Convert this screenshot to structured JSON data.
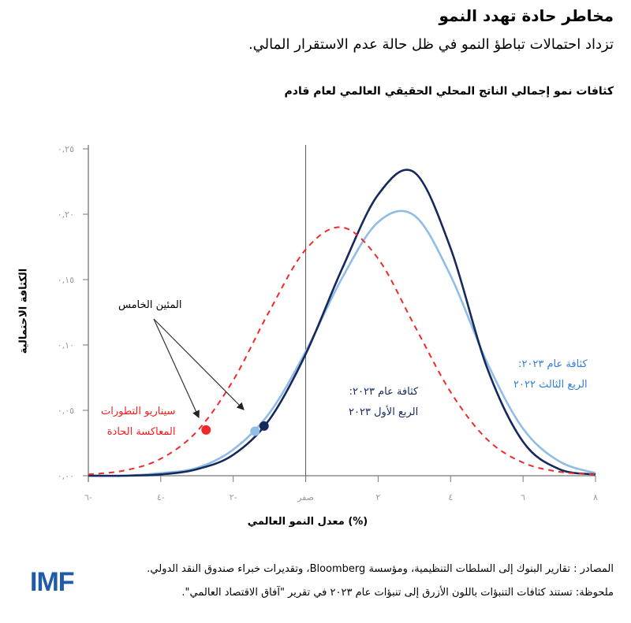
{
  "header": {
    "title": "مخاطر حادة تهدد النمو",
    "subtitle": "تزداد احتمالات تباطؤ النمو في ظل حالة عدم الاستقرار المالي."
  },
  "chart_data": {
    "type": "line",
    "title": "كثافات نمو إجمالي الناتج المحلي الحقيقي العالمي لعام قادم",
    "xlabel": "معدل النمو العالمي (%)",
    "ylabel": "الكثافة الاحتمالية",
    "xlim": [
      -6,
      8
    ],
    "ylim": [
      0,
      0.25
    ],
    "x_ticks": [
      -6,
      -4,
      -2,
      0,
      2,
      4,
      6,
      8
    ],
    "x_tick_labels": [
      "٦-",
      "٤-",
      "٢-",
      "صفر",
      "٢",
      "٤",
      "٦",
      "٨"
    ],
    "y_ticks": [
      0,
      0.05,
      0.1,
      0.15,
      0.2,
      0.25
    ],
    "y_tick_labels": [
      "٠,٠٠",
      "٠,٠٥",
      "٠,١٠",
      "٠,١٥",
      "٠,٢٠",
      "٠,٢٥"
    ],
    "grid": false,
    "x": [
      -6,
      -5,
      -4,
      -3,
      -2,
      -1,
      0,
      1,
      2,
      3,
      4,
      5,
      6,
      7,
      8
    ],
    "series": [
      {
        "name": "كثافة عام ٢٠٢٣: الربع الثالث ٢٠٢٢",
        "color": "#8fbde6",
        "style": "solid",
        "values": [
          0.0,
          0.0,
          0.002,
          0.006,
          0.02,
          0.048,
          0.095,
          0.151,
          0.194,
          0.199,
          0.153,
          0.087,
          0.036,
          0.011,
          0.002
        ],
        "marker": {
          "x": -1.4,
          "y": 0.034
        }
      },
      {
        "name": "كثافة عام ٢٠٢٣: الربع الأول ٢٠٢٣",
        "color": "#15295c",
        "style": "solid",
        "values": [
          0.0,
          0.0,
          0.001,
          0.005,
          0.016,
          0.043,
          0.093,
          0.158,
          0.215,
          0.232,
          0.174,
          0.083,
          0.026,
          0.005,
          0.001
        ],
        "marker": {
          "x": -1.15,
          "y": 0.038
        }
      },
      {
        "name": "سيناريو التطورات المعاكسة الحادة",
        "color": "#ee2a2a",
        "style": "dashed",
        "values": [
          0.001,
          0.004,
          0.013,
          0.034,
          0.073,
          0.126,
          0.173,
          0.19,
          0.166,
          0.115,
          0.064,
          0.028,
          0.01,
          0.003,
          0.001
        ],
        "marker": {
          "x": -2.75,
          "y": 0.035
        }
      }
    ],
    "annotations": {
      "fifth_percentile": "المئين الخامس",
      "severe_line1": "سيناريو التطورات",
      "severe_line2": "المعاكسة الحادة",
      "q1_line1": "كثافة عام ٢٠٢٣:",
      "q1_line2": "الربع الأول ٢٠٢٣",
      "q3_line1": "كثافة عام ٢٠٢٣:",
      "q3_line2": "الربع الثالث ٢٠٢٢"
    }
  },
  "footer": {
    "source": "المصادر : تقارير البنوك إلى السلطات التنظيمية، ومؤسسة Bloomberg، وتقديرات خبراء صندوق النقد الدولي.",
    "note": "ملحوظة: تستند كثافات التنبؤات باللون الأزرق إلى تنبؤات عام ٢٠٢٣ في تقرير \"آفاق الاقتصاد العالمي\".",
    "logo": "IMF"
  }
}
